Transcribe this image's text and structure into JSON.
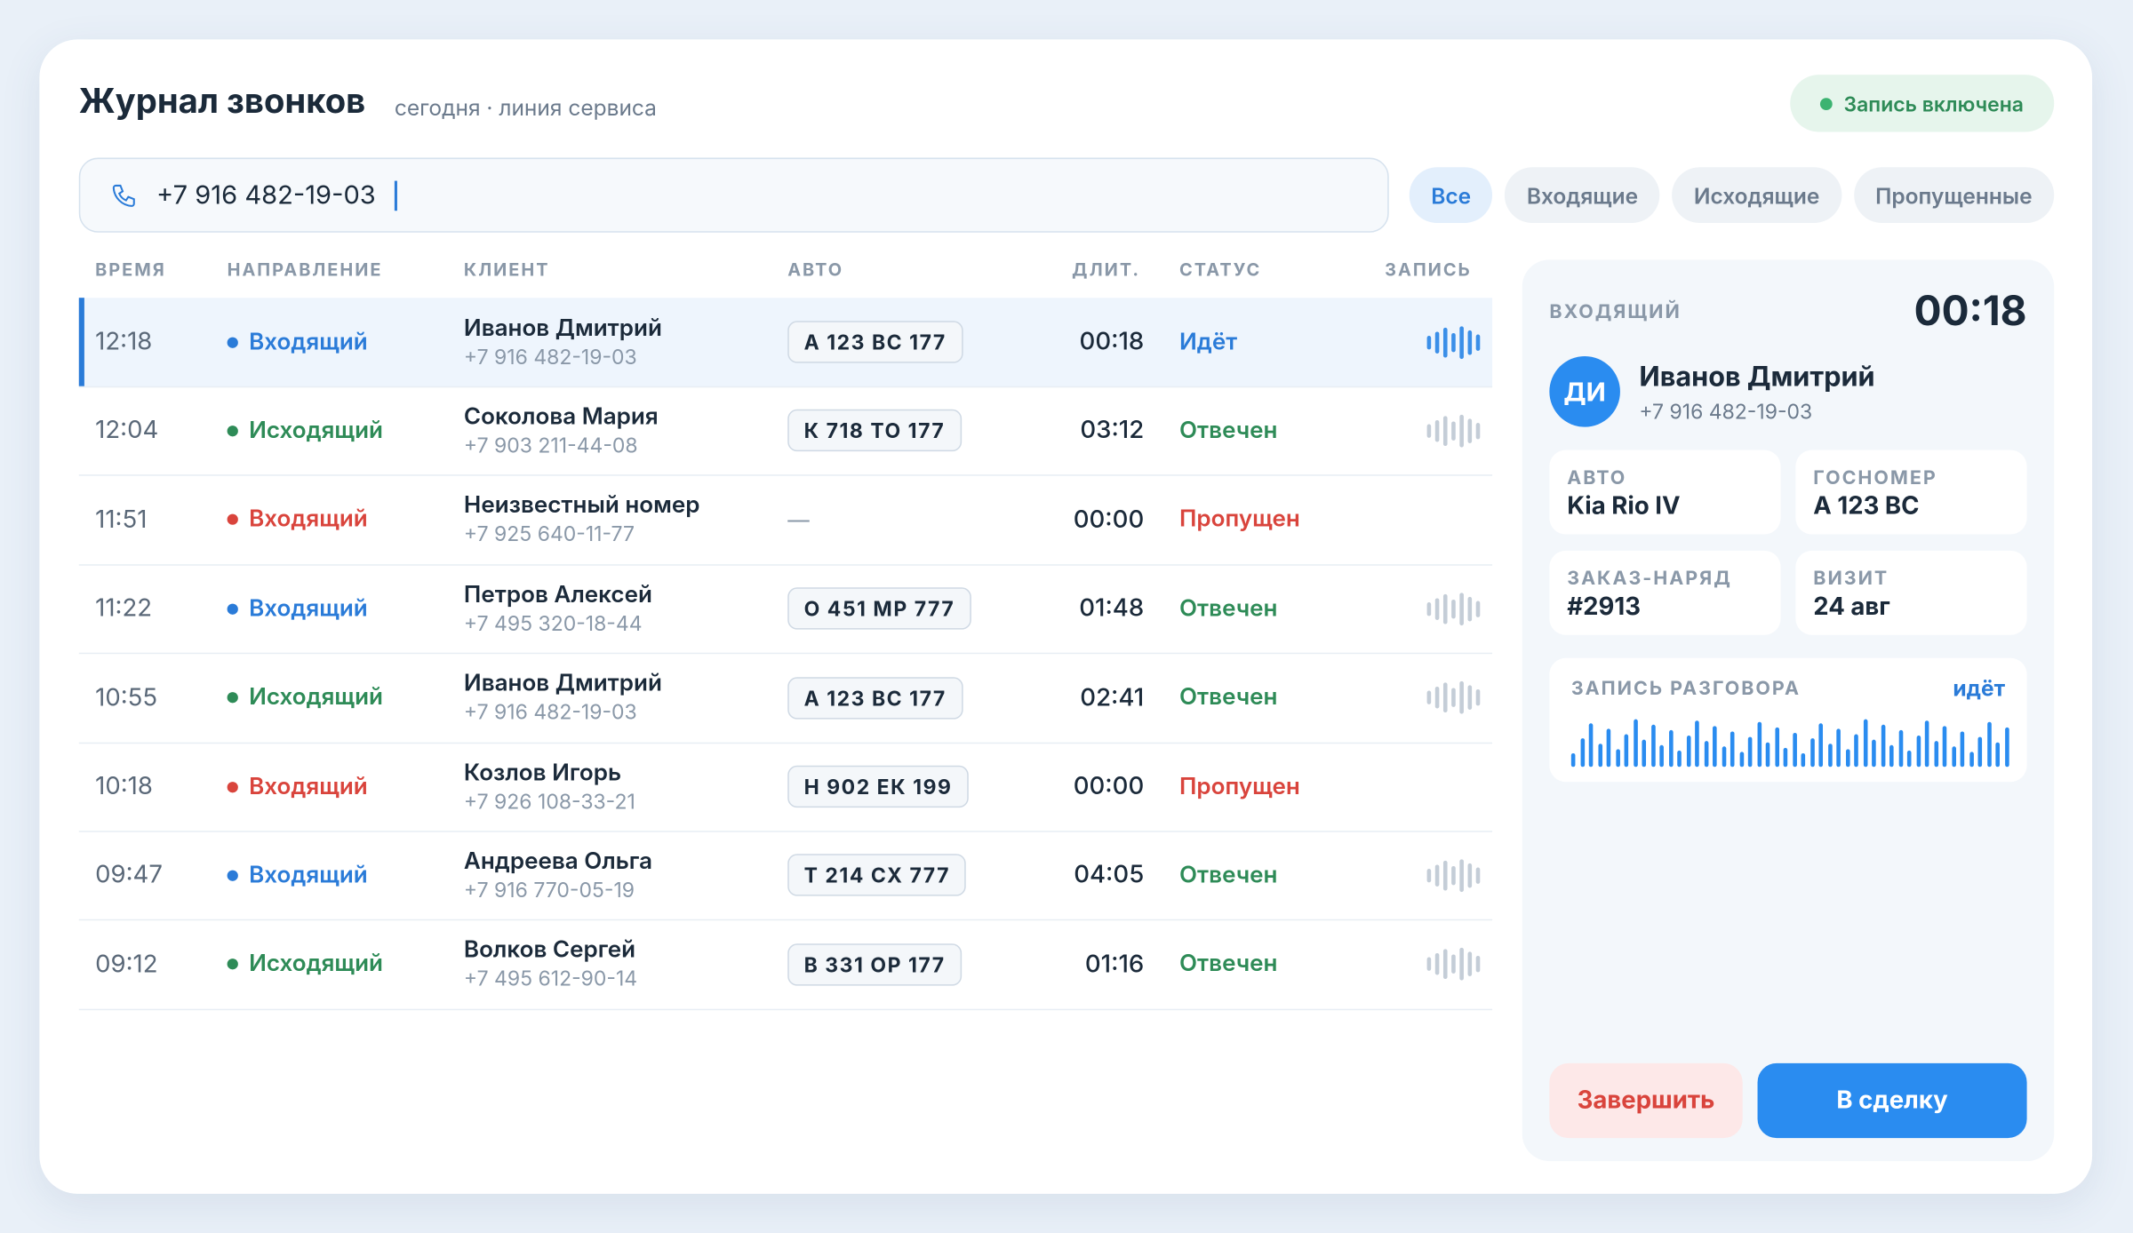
{
  "header": {
    "title": "Журнал звонков",
    "subtitle": "сегодня · линия сервиса",
    "recording_badge": "Запись включена"
  },
  "search": {
    "value": "+7 916 482-19-03"
  },
  "filters": [
    "Все",
    "Входящие",
    "Исходящие",
    "Пропущенные"
  ],
  "table": {
    "columns": [
      "ВРЕМЯ",
      "НАПРАВЛЕНИЕ",
      "КЛИЕНТ",
      "АВТО",
      "ДЛИТ.",
      "СТАТУС",
      "ЗАПИСЬ"
    ],
    "rows": [
      {
        "time": "12:18",
        "direction": "Входящий",
        "direction_color": "#2a7bd8",
        "client": "Иванов Дмитрий",
        "phone": "+7 916 482-19-03",
        "car": "А 123 ВС 177",
        "duration": "00:18",
        "status": "Идёт",
        "status_color": "#2a7bd8",
        "recording": true,
        "active": true
      },
      {
        "time": "12:04",
        "direction": "Исходящий",
        "direction_color": "#2e8b57",
        "client": "Соколова Мария",
        "phone": "+7 903 211-44-08",
        "car": "К 718 ТО 177",
        "duration": "03:12",
        "status": "Отвечен",
        "status_color": "#2e8b57",
        "recording": true,
        "active": false
      },
      {
        "time": "11:51",
        "direction": "Входящий",
        "direction_color": "#d9443c",
        "client": "Неизвестный номер",
        "phone": "+7 925 640-11-77",
        "car": "—",
        "duration": "00:00",
        "status": "Пропущен",
        "status_color": "#d9443c",
        "recording": false,
        "active": false
      },
      {
        "time": "11:22",
        "direction": "Входящий",
        "direction_color": "#2a7bd8",
        "client": "Петров Алексей",
        "phone": "+7 495 320-18-44",
        "car": "О 451 МР 777",
        "duration": "01:48",
        "status": "Отвечен",
        "status_color": "#2e8b57",
        "recording": true,
        "active": false
      },
      {
        "time": "10:55",
        "direction": "Исходящий",
        "direction_color": "#2e8b57",
        "client": "Иванов Дмитрий",
        "phone": "+7 916 482-19-03",
        "car": "А 123 ВС 177",
        "duration": "02:41",
        "status": "Отвечен",
        "status_color": "#2e8b57",
        "recording": true,
        "active": false
      },
      {
        "time": "10:18",
        "direction": "Входящий",
        "direction_color": "#d9443c",
        "client": "Козлов Игорь",
        "phone": "+7 926 108-33-21",
        "car": "Н 902 ЕК 199",
        "duration": "00:00",
        "status": "Пропущен",
        "status_color": "#d9443c",
        "recording": false,
        "active": false
      },
      {
        "time": "09:47",
        "direction": "Входящий",
        "direction_color": "#2a7bd8",
        "client": "Андреева Ольга",
        "phone": "+7 916 770-05-19",
        "car": "Т 214 СХ 777",
        "duration": "04:05",
        "status": "Отвечен",
        "status_color": "#2e8b57",
        "recording": true,
        "active": false
      },
      {
        "time": "09:12",
        "direction": "Исходящий",
        "direction_color": "#2e8b57",
        "client": "Волков Сергей",
        "phone": "+7 495 612-90-14",
        "car": "В 331 ОР 177",
        "duration": "01:16",
        "status": "Отвечен",
        "status_color": "#2e8b57",
        "recording": true,
        "active": false
      }
    ]
  },
  "detail": {
    "direction": "ВХОДЯЩИЙ",
    "timer": "00:18",
    "avatar": "ДИ",
    "name": "Иванов Дмитрий",
    "phone": "+7 916 482-19-03",
    "fields": [
      {
        "label": "АВТО",
        "value": "Kia Rio IV"
      },
      {
        "label": "ГОСНОМЕР",
        "value": "А 123 ВС"
      },
      {
        "label": "ЗАКАЗ-НАРЯД",
        "value": "#2913"
      },
      {
        "label": "ВИЗИТ",
        "value": "24 авг"
      }
    ],
    "recording_label": "ЗАПИСЬ РАЗГОВОРА",
    "recording_status": "идёт",
    "buttons": [
      "Завершить",
      "В сделку"
    ]
  }
}
